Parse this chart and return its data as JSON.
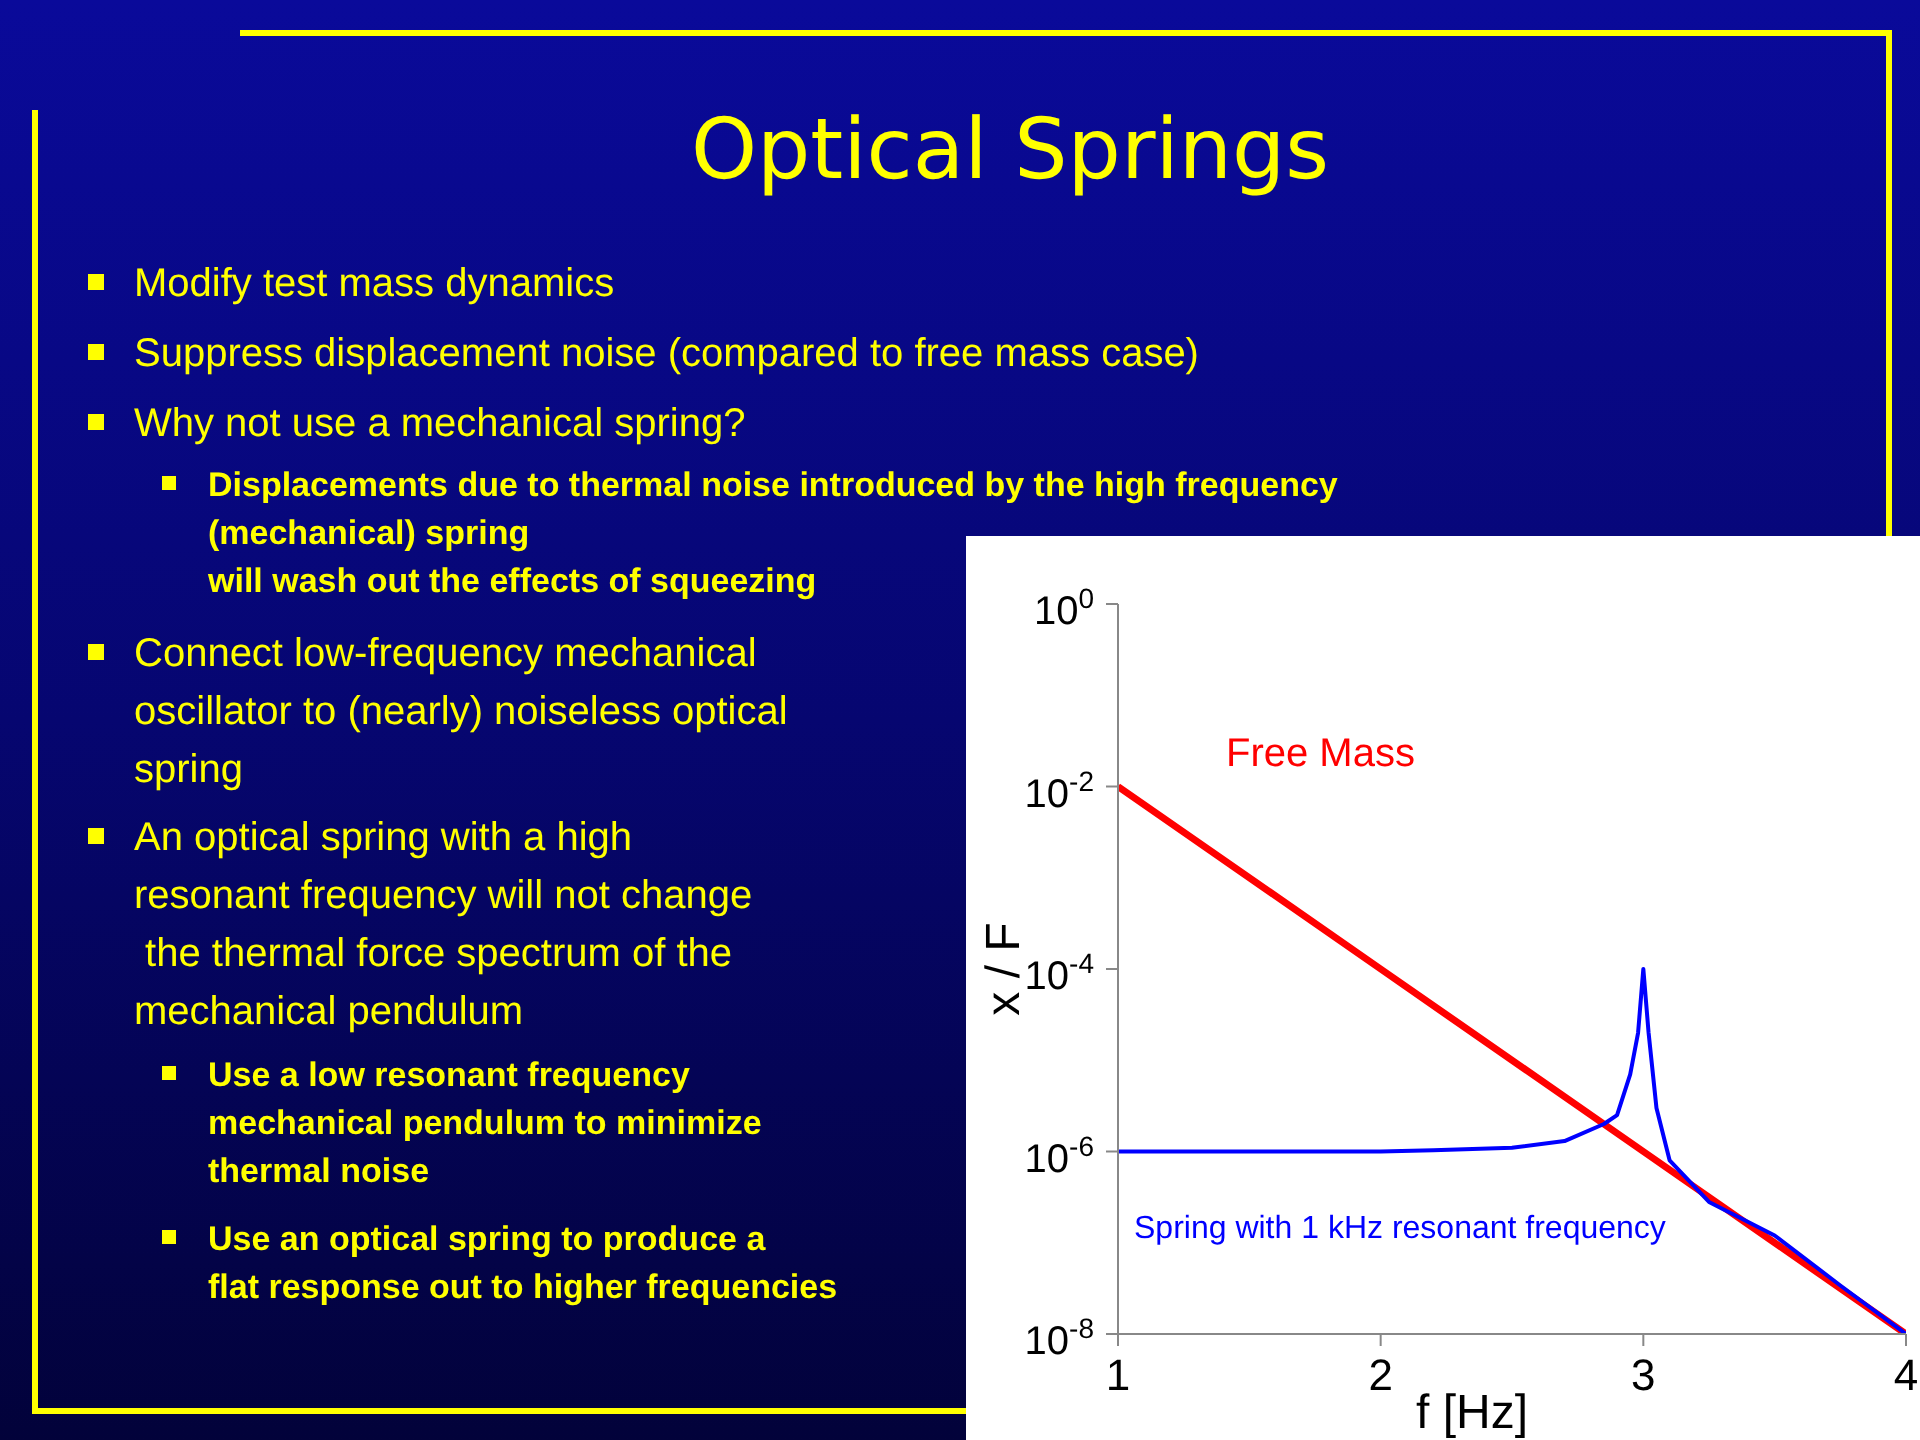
{
  "chart_data": {
    "type": "line",
    "title": "Optical Springs",
    "xlabel": "f [Hz]",
    "ylabel": "x / F",
    "log": "y",
    "legend": false,
    "marker": "none",
    "line_style": "solid",
    "xlim": [
      1,
      4
    ],
    "xticks": [
      1,
      2,
      3,
      4
    ],
    "ylim": [
      1e-08,
      1
    ],
    "yticks": [
      {
        "value": 1,
        "label": "10$^{0}$"
      },
      {
        "value": 0.01,
        "label": "10$^{-2}$"
      },
      {
        "value": 0.0001,
        "label": "10$^{-4}$"
      },
      {
        "value": 1e-06,
        "label": "10$^{-6}$"
      },
      {
        "value": 1e-08,
        "label": "10$^{-8}$"
      }
    ],
    "series": [
      {
        "name": "Free Mass",
        "color": "#ff0000",
        "x": [
          1,
          2,
          3,
          4
        ],
        "values": [
          0.01,
          0.0001,
          1e-06,
          1e-08
        ]
      },
      {
        "name": "Spring with 1 kHz resonant frequency",
        "color": "#0000ff",
        "x": [
          1,
          1.5,
          2,
          2.2,
          2.5,
          2.7,
          2.85,
          2.9,
          2.95,
          2.98,
          3,
          3.02,
          3.05,
          3.1,
          3.25,
          3.5,
          3.75,
          4
        ],
        "values": [
          1e-06,
          1e-06,
          1e-06,
          1.03e-06,
          1.1e-06,
          1.3e-06,
          2e-06,
          2.5e-06,
          7e-06,
          2e-05,
          0.0001,
          2e-05,
          3e-06,
          8e-07,
          2.8e-07,
          1.2e-07,
          3.4e-08,
          1e-08
        ]
      }
    ],
    "annotations": [
      "Modify test mass dynamics",
      "Suppress displacement noise (compared to free mass case)",
      "Why not use a mechanical spring?",
      "Displacements due to thermal noise introduced by the high frequency\n(mechanical) spring\nwill wash out the effects of squeezing",
      "Connect low-frequency mechanical\noscillator to (nearly) noiseless optical\nspring",
      "An optical spring with a high\nresonant frequency will not change\n the thermal force spectrum of the\nmechanical pendulum",
      "Use a low resonant frequency\nmechanical pendulum to minimize\nthermal noise",
      "Use an optical spring to produce a\nflat response out to higher frequencies"
    ]
  }
}
